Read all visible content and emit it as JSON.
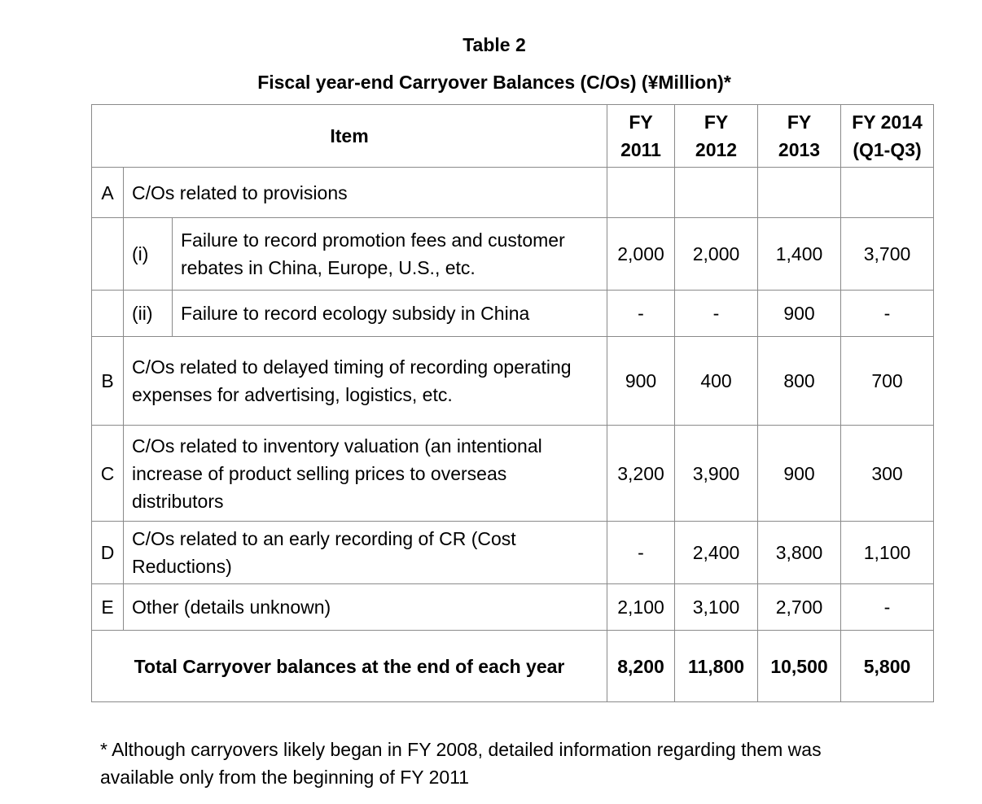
{
  "title": "Table 2",
  "subtitle": "Fiscal year-end Carryover Balances (C/Os) (¥Million)*",
  "colors": {
    "background": "#ffffff",
    "text": "#000000",
    "table_border": "#8a8a8a"
  },
  "table": {
    "header": {
      "item_label": "Item",
      "year_columns": [
        {
          "line1": "FY",
          "line2": "2011"
        },
        {
          "line1": "FY",
          "line2": "2012"
        },
        {
          "line1": "FY",
          "line2": "2013"
        },
        {
          "line1": "FY 2014",
          "line2": "(Q1-Q3)"
        }
      ]
    },
    "rows": [
      {
        "letter": "A",
        "sub": "",
        "desc": "C/Os related to provisions",
        "values": [
          "",
          "",
          "",
          ""
        ]
      },
      {
        "letter": "",
        "sub": "(i)",
        "desc": "Failure to record promotion fees and customer rebates in China, Europe, U.S., etc.",
        "values": [
          "2,000",
          "2,000",
          "1,400",
          "3,700"
        ]
      },
      {
        "letter": "",
        "sub": "(ii)",
        "desc": "Failure to record ecology subsidy in China",
        "values": [
          "-",
          "-",
          "900",
          "-"
        ]
      },
      {
        "letter": "B",
        "sub": "",
        "desc": "C/Os related to delayed timing of recording operating expenses for advertising, logistics, etc.",
        "values": [
          "900",
          "400",
          "800",
          "700"
        ]
      },
      {
        "letter": "C",
        "sub": "",
        "desc": "C/Os related to inventory valuation (an intentional increase of product selling prices to overseas distributors",
        "values": [
          "3,200",
          "3,900",
          "900",
          "300"
        ]
      },
      {
        "letter": "D",
        "sub": "",
        "desc": "C/Os related to an early recording of CR (Cost Reductions)",
        "values": [
          "-",
          "2,400",
          "3,800",
          "1,100"
        ]
      },
      {
        "letter": "E",
        "sub": "",
        "desc": "Other (details unknown)",
        "values": [
          "2,100",
          "3,100",
          "2,700",
          "-"
        ]
      }
    ],
    "total": {
      "label": "Total Carryover balances at the end of each year",
      "values": [
        "8,200",
        "11,800",
        "10,500",
        "5,800"
      ]
    }
  },
  "footnote": "* Although carryovers likely began in FY 2008, detailed information regarding them was available only from the beginning of FY 2011"
}
